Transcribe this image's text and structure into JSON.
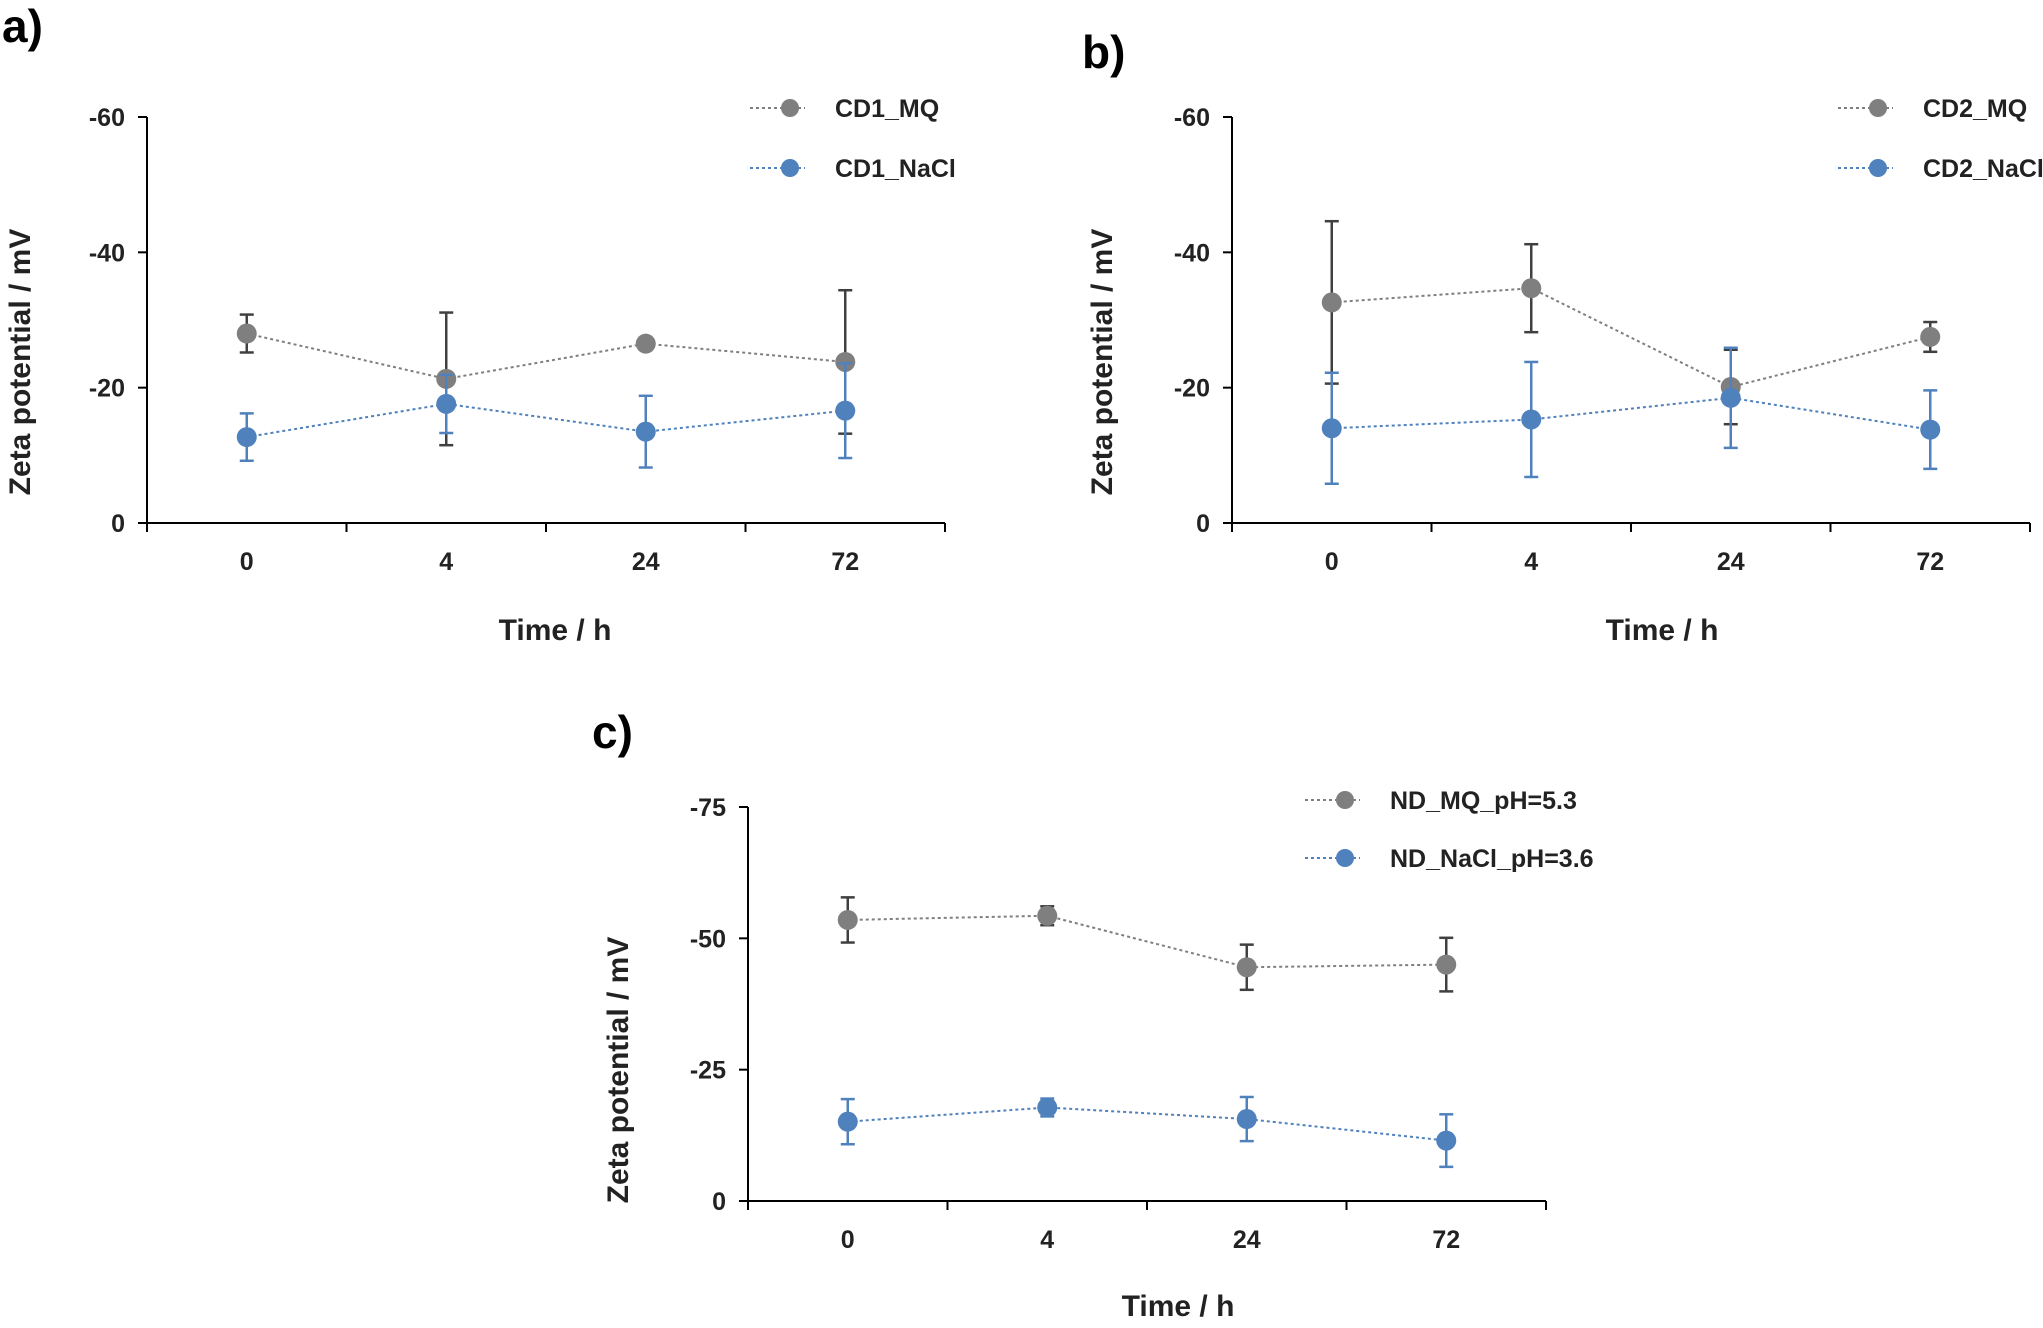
{
  "chart_data": [
    {
      "panel_label": "a)",
      "type": "line",
      "xlabel": "Time / h",
      "ylabel": "Zeta potential / mV",
      "categories": [
        "0",
        "4",
        "24",
        "72"
      ],
      "ylim": [
        0,
        -60
      ],
      "yticks": [
        "-60",
        "-40",
        "-20",
        "0"
      ],
      "ytick_values": [
        -60,
        -40,
        -20,
        0
      ],
      "legend_position": "top-right",
      "series": [
        {
          "name": "CD1_MQ",
          "color": "#7f7f7f",
          "values": [
            -28.0,
            -21.3,
            -26.5,
            -23.8
          ],
          "errors": [
            2.8,
            9.8,
            0.6,
            10.6
          ]
        },
        {
          "name": "CD1_NaCl",
          "color": "#4f81bd",
          "values": [
            -12.7,
            -17.6,
            -13.5,
            -16.6
          ],
          "errors": [
            3.5,
            4.3,
            5.3,
            7.0
          ]
        }
      ]
    },
    {
      "panel_label": "b)",
      "type": "line",
      "xlabel": "Time / h",
      "ylabel": "Zeta potential / mV",
      "categories": [
        "0",
        "4",
        "24",
        "72"
      ],
      "ylim": [
        0,
        -60
      ],
      "yticks": [
        "-60",
        "-40",
        "-20",
        "0"
      ],
      "ytick_values": [
        -60,
        -40,
        -20,
        0
      ],
      "legend_position": "top-right",
      "series": [
        {
          "name": "CD2_MQ",
          "color": "#7f7f7f",
          "values": [
            -32.6,
            -34.7,
            -20.1,
            -27.5
          ],
          "errors": [
            12.0,
            6.5,
            5.5,
            2.2
          ]
        },
        {
          "name": "CD2_NaCl",
          "color": "#4f81bd",
          "values": [
            -14.0,
            -15.3,
            -18.5,
            -13.8
          ],
          "errors": [
            8.2,
            8.5,
            7.4,
            5.8
          ]
        }
      ]
    },
    {
      "panel_label": "c)",
      "type": "line",
      "xlabel": "Time / h",
      "ylabel": "Zeta potential / mV",
      "categories": [
        "0",
        "4",
        "24",
        "72"
      ],
      "ylim": [
        0,
        -75
      ],
      "yticks": [
        "-75",
        "-50",
        "-25",
        "0"
      ],
      "ytick_values": [
        -75,
        -50,
        -25,
        0
      ],
      "legend_position": "top-right",
      "series": [
        {
          "name": "ND_MQ_pH=5.3",
          "color": "#7f7f7f",
          "values": [
            -53.5,
            -54.3,
            -44.5,
            -45.0
          ],
          "errors": [
            4.3,
            1.8,
            4.3,
            5.1
          ]
        },
        {
          "name": "ND_NaCl_pH=3.6",
          "color": "#4f81bd",
          "values": [
            -15.1,
            -17.8,
            -15.6,
            -11.5
          ],
          "errors": [
            4.3,
            1.7,
            4.2,
            5.0
          ]
        }
      ]
    }
  ]
}
